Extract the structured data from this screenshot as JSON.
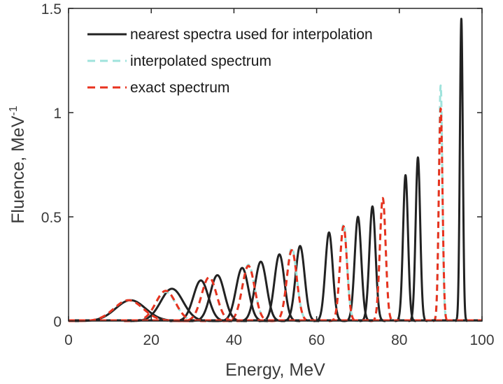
{
  "chart_data": {
    "type": "line",
    "title": "",
    "xlabel": "Energy, MeV",
    "ylabel": "Fluence, MeV",
    "ylabel_superscript": "-1",
    "xlim": [
      0,
      100
    ],
    "ylim": [
      0,
      1.5
    ],
    "xticks": [
      "0",
      "20",
      "40",
      "60",
      "80",
      "100"
    ],
    "yticks": [
      "0",
      "0.5",
      "1",
      "1.5"
    ],
    "xtick_values": [
      0,
      20,
      40,
      60,
      80,
      100
    ],
    "ytick_values": [
      0,
      0.5,
      1,
      1.5
    ],
    "grid": false,
    "legend_position": "top-left",
    "series": [
      {
        "name": "nearest spectra used for interpolation",
        "color": "#222222",
        "style": "solid",
        "peaks": [
          {
            "center": 15.0,
            "height": 0.1,
            "sigma": 3.6
          },
          {
            "center": 25.0,
            "height": 0.155,
            "sigma": 2.7
          },
          {
            "center": 32.0,
            "height": 0.195,
            "sigma": 1.8
          },
          {
            "center": 36.0,
            "height": 0.22,
            "sigma": 1.7
          },
          {
            "center": 42.0,
            "height": 0.255,
            "sigma": 1.5
          },
          {
            "center": 46.5,
            "height": 0.285,
            "sigma": 1.4
          },
          {
            "center": 51.0,
            "height": 0.32,
            "sigma": 1.2
          },
          {
            "center": 56.0,
            "height": 0.36,
            "sigma": 1.1
          },
          {
            "center": 63.0,
            "height": 0.425,
            "sigma": 0.9
          },
          {
            "center": 70.0,
            "height": 0.5,
            "sigma": 0.8
          },
          {
            "center": 73.5,
            "height": 0.55,
            "sigma": 0.75
          },
          {
            "center": 81.5,
            "height": 0.7,
            "sigma": 0.6
          },
          {
            "center": 84.5,
            "height": 0.785,
            "sigma": 0.55
          },
          {
            "center": 95.0,
            "height": 1.45,
            "sigma": 0.35
          }
        ]
      },
      {
        "name": "interpolated spectrum",
        "color": "#9fe3dc",
        "style": "dashed",
        "peaks": [
          {
            "center": 14.5,
            "height": 0.1,
            "sigma": 3.5
          },
          {
            "center": 23.5,
            "height": 0.14,
            "sigma": 2.4
          },
          {
            "center": 34.0,
            "height": 0.21,
            "sigma": 1.8
          },
          {
            "center": 43.5,
            "height": 0.27,
            "sigma": 1.5
          },
          {
            "center": 54.0,
            "height": 0.35,
            "sigma": 1.2
          },
          {
            "center": 66.5,
            "height": 0.465,
            "sigma": 0.85
          },
          {
            "center": 76.0,
            "height": 0.59,
            "sigma": 0.7
          },
          {
            "center": 90.0,
            "height": 1.13,
            "sigma": 0.42
          }
        ]
      },
      {
        "name": "exact spectrum",
        "color": "#e8321e",
        "style": "dashed",
        "peaks": [
          {
            "center": 14.5,
            "height": 0.1,
            "sigma": 3.5
          },
          {
            "center": 23.5,
            "height": 0.145,
            "sigma": 2.4
          },
          {
            "center": 34.0,
            "height": 0.21,
            "sigma": 1.8
          },
          {
            "center": 43.5,
            "height": 0.265,
            "sigma": 1.5
          },
          {
            "center": 54.0,
            "height": 0.34,
            "sigma": 1.2
          },
          {
            "center": 66.5,
            "height": 0.455,
            "sigma": 0.85
          },
          {
            "center": 76.0,
            "height": 0.59,
            "sigma": 0.7
          },
          {
            "center": 90.0,
            "height": 1.02,
            "sigma": 0.45
          }
        ]
      }
    ]
  }
}
